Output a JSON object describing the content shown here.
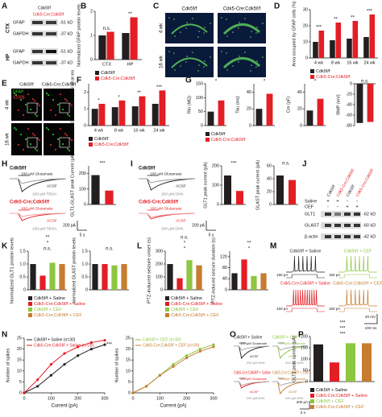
{
  "figure": {
    "panel_labels": [
      "A",
      "B",
      "C",
      "D",
      "E",
      "F",
      "G",
      "H",
      "I",
      "J",
      "K",
      "L",
      "M",
      "N",
      "O",
      "P"
    ],
    "a": {
      "headers": [
        "Cdk5f/f",
        "Cdk5-Cre;Cdk5f/f"
      ],
      "regions": [
        "CTX",
        "HP"
      ],
      "bands": [
        "GFAP",
        "GAPDH",
        "GFAP",
        "GAPDH"
      ],
      "sizes": [
        "-51 kD",
        "-37 kD",
        "-51 kD",
        "-37 kD"
      ]
    },
    "c": {
      "headers": [
        "Cdk5f/f",
        "Cdk5-Cre;Cdk5f/f"
      ],
      "rows": [
        "4 wk",
        "16 wk"
      ]
    },
    "e": {
      "headers": [
        "Cdk5f/f",
        "Cdk5-Cre;Cdk5f/f"
      ],
      "rows": [
        "4 wk",
        "16 wk"
      ],
      "stains": [
        "GFAP",
        "S100β"
      ]
    },
    "h": {
      "genotypes": [
        "Cdk5f/f",
        "Cdk5-Cre;Cdk5f/f"
      ],
      "labels": [
        "100 µM Glutamate",
        "ACSF",
        "100 µM TBOA",
        "100 µM Glutamate",
        "ACSF",
        "100 µM TBOA"
      ],
      "scale": [
        "200 pA",
        "5 s"
      ]
    },
    "i": {
      "genotypes": [
        "Cdk5f/f",
        "Cdk5-Cre;Cdk5f/f"
      ],
      "labels": [
        "100 µM Glutamate",
        "ACSF",
        "200 µM DHK",
        "100 µM Glutamate",
        "ACSF",
        "200 µM DHK"
      ],
      "scale": [
        "200 pA",
        "5 s"
      ]
    },
    "j": {
      "headers": [
        "Cdk5f/f",
        "Cdk5-Cre;Cdk5f/f",
        "Cdk5f/f",
        "Cdk5-Cre;Cdk5f/f"
      ],
      "rows": [
        "Saline",
        "CEF"
      ],
      "signs": [
        [
          "+",
          "+",
          "-",
          "-"
        ],
        [
          "-",
          "-",
          "+",
          "+"
        ]
      ],
      "bands": [
        "GLT1",
        "GLAST",
        "β-actin"
      ],
      "sizes": [
        "-62 kD",
        "-60 kD",
        "-42 kD"
      ]
    },
    "m": {
      "titles": [
        "Cdk5f/f + Saline",
        "Cdk5f/f + CEF",
        "Cdk5-Cre;Cdk5f/f + Saline",
        "Cdk5-Cre;Cdk5f/f + CEF"
      ],
      "currents": [
        "150 pA",
        "150 pA",
        "150 pA",
        "150 pA"
      ],
      "scale": [
        "20 mV",
        "100 ms"
      ]
    },
    "o": {
      "titles": [
        "Cdk5f/f + Saline",
        "Cdk5f/f + CEF",
        "Cdk5-Cre;Cdk5f/f + Saline",
        "Cdk5-Cre;Cdk5f/f + CEF"
      ],
      "labels": [
        "100 µM Glutamate",
        "ACSF",
        "200 µM DHK",
        "100 µM Glutamate",
        "ACSF",
        "200 µM DHK",
        "100 µM Glutamate",
        "ACSF",
        "200 µM DHK",
        "100 µM Glutamate",
        "ACSF",
        "200 µM DHK"
      ],
      "scale": [
        "200 pA",
        "5 s"
      ]
    }
  },
  "chart_data": [
    {
      "type": "bar",
      "ylabel": "Normalized GFAP protein levels",
      "categories": [
        "CTX",
        "HP"
      ],
      "series": [
        {
          "name": "Cdk5f/f",
          "color": "#231f20",
          "values": [
            1.0,
            1.1
          ]
        },
        {
          "name": "Cdk5-Cre;Cdk5f/f",
          "color": "#e31e24",
          "values": [
            1.15,
            1.75
          ]
        }
      ],
      "ylim": [
        0,
        2
      ],
      "yticks": [
        0,
        1,
        2
      ],
      "annotations": [
        "n.s.",
        "**"
      ],
      "legend": true
    },
    {
      "type": "bar",
      "ylabel": "Area occupied by GFAP cells (%)",
      "categories": [
        "4 wk",
        "8 wk",
        "16 wk",
        "24 wk"
      ],
      "series": [
        {
          "name": "Cdk5f/f",
          "color": "#231f20",
          "values": [
            10,
            11,
            12,
            13
          ]
        },
        {
          "name": "Cdk5-Cre;Cdk5f/f",
          "color": "#e31e24",
          "values": [
            17,
            22,
            23,
            27
          ]
        }
      ],
      "ylim": [
        0,
        30
      ],
      "yticks": [
        0,
        10,
        20,
        30
      ],
      "annotations": [
        "***",
        "**",
        "**",
        "***"
      ],
      "legend": true
    },
    {
      "type": "bar",
      "ylabel": "Density of S100β and GFAP double-positive cells per area",
      "categories": [
        "4 wk",
        "8 wk",
        "16 wk",
        "24 wk"
      ],
      "series": [
        {
          "name": "Cdk5f/f",
          "color": "#231f20",
          "values": [
            1.0,
            1.1,
            1.15,
            1.3
          ]
        },
        {
          "name": "Cdk5-Cre;Cdk5f/f",
          "color": "#e31e24",
          "values": [
            1.3,
            1.5,
            1.75,
            2.1
          ]
        }
      ],
      "ylim": [
        0,
        2.5
      ],
      "yticks": [
        0,
        1,
        2
      ],
      "annotations": [
        "*",
        "*",
        "**",
        "***"
      ],
      "legend": true
    },
    {
      "type": "bar",
      "ylabel": "Rin (MΩ)",
      "series": [
        {
          "name": "Cdk5f/f",
          "color": "#231f20",
          "values": [
            50
          ]
        },
        {
          "name": "Cdk5-Cre;Cdk5f/f",
          "color": "#e31e24",
          "values": [
            90
          ]
        }
      ],
      "ylim": [
        0,
        150
      ],
      "yticks": [
        0,
        50,
        100,
        150
      ],
      "annotations": [
        "*"
      ],
      "legend": true
    },
    {
      "type": "bar",
      "ylabel": "Tau (ms)",
      "series": [
        {
          "color": "#231f20",
          "values": [
            20
          ]
        },
        {
          "color": "#e31e24",
          "values": [
            38
          ]
        }
      ],
      "ylim": [
        0,
        50
      ],
      "yticks": [
        0,
        20,
        40
      ],
      "annotations": [
        "*"
      ]
    },
    {
      "type": "bar",
      "ylabel": "Cm (pF)",
      "series": [
        {
          "color": "#231f20",
          "values": [
            18
          ]
        },
        {
          "color": "#e31e24",
          "values": [
            32
          ]
        }
      ],
      "ylim": [
        0,
        50
      ],
      "yticks": [
        0,
        20,
        40
      ],
      "annotations": [
        "*"
      ]
    },
    {
      "type": "bar",
      "ylabel": "RMP (mV)",
      "series": [
        {
          "color": "#231f20",
          "values": [
            -75
          ]
        },
        {
          "color": "#e31e24",
          "values": [
            -73
          ]
        }
      ],
      "ylim": [
        -80,
        0
      ],
      "yticks": [
        0,
        -20,
        -40,
        -60,
        -80
      ],
      "annotations": [
        "n.s."
      ]
    },
    {
      "type": "bar",
      "ylabel": "GLT1-GLAST peak Current (pA)",
      "series": [
        {
          "color": "#231f20",
          "values": [
            190
          ]
        },
        {
          "color": "#e31e24",
          "values": [
            90
          ]
        }
      ],
      "ylim": [
        0,
        250
      ],
      "yticks": [
        0,
        100,
        200
      ],
      "annotations": [
        "***"
      ]
    },
    {
      "type": "bar",
      "ylabel": "GLT1 peak current (pA)",
      "series": [
        {
          "color": "#231f20",
          "values": [
            150
          ]
        },
        {
          "color": "#e31e24",
          "values": [
            70
          ]
        }
      ],
      "ylim": [
        0,
        200
      ],
      "yticks": [
        0,
        100,
        200
      ],
      "annotations": [
        "***"
      ]
    },
    {
      "type": "bar",
      "ylabel": "GLAST peak current (pA)",
      "series": [
        {
          "color": "#231f20",
          "values": [
            45
          ]
        },
        {
          "color": "#e31e24",
          "values": [
            38
          ]
        }
      ],
      "ylim": [
        0,
        60
      ],
      "yticks": [
        0,
        20,
        40,
        60
      ],
      "annotations": [
        "n.s."
      ]
    },
    {
      "type": "bar",
      "ylabel": "Normalized GLT1 protein levels",
      "series": [
        {
          "name": "Cdk5f/f + Saline",
          "color": "#231f20",
          "values": [
            1.0
          ]
        },
        {
          "name": "Cdk5-Cre;Cdk5f/f + Saline",
          "color": "#e31e24",
          "values": [
            0.55
          ]
        },
        {
          "name": "Cdk5f/f + CEF",
          "color": "#8dc63f",
          "values": [
            1.05
          ]
        },
        {
          "name": "Cdk5-Cre;Cdk5f/f + CEF",
          "color": "#c77c2e",
          "values": [
            1.0
          ]
        }
      ],
      "ylim": [
        0,
        1.5
      ],
      "yticks": [
        0,
        0.5,
        {
          "value": 1,
          "label": "1.0"
        },
        1.5
      ],
      "annotations": [
        "n.s.",
        "*",
        "**"
      ],
      "legend": true
    },
    {
      "type": "bar",
      "ylabel": "Normalized GLAST protein levels",
      "series": [
        {
          "color": "#231f20",
          "values": [
            1.0
          ]
        },
        {
          "color": "#e31e24",
          "values": [
            1.0
          ]
        },
        {
          "color": "#8dc63f",
          "values": [
            0.95
          ]
        },
        {
          "color": "#c77c2e",
          "values": [
            1.0
          ]
        }
      ],
      "ylim": [
        0,
        1.5
      ],
      "yticks": [
        0,
        0.5,
        {
          "value": 1,
          "label": "1.0"
        },
        1.5
      ],
      "annotations": [
        "n.s."
      ]
    },
    {
      "type": "bar",
      "ylabel": "PTZ-induced seizure onset (s)",
      "series": [
        {
          "name": "Cdk5f/f + Saline",
          "color": "#231f20",
          "values": [
            200
          ]
        },
        {
          "name": "Cdk5-Cre;Cdk5f/f + Saline",
          "color": "#e31e24",
          "values": [
            90
          ]
        },
        {
          "name": "Cdk5f/f + CEF",
          "color": "#8dc63f",
          "values": [
            230
          ]
        },
        {
          "name": "Cdk5-Cre;Cdk5f/f + CEF",
          "color": "#c77c2e",
          "values": [
            190
          ]
        }
      ],
      "ylim": [
        0,
        300
      ],
      "yticks": [
        0,
        100,
        200,
        300
      ],
      "annotations": [
        "*",
        "*",
        "n.s."
      ],
      "legend": true
    },
    {
      "type": "bar",
      "ylabel": "PTZ-induced seizure duration (s)",
      "series": [
        {
          "color": "#231f20",
          "values": [
            60
          ]
        },
        {
          "color": "#e31e24",
          "values": [
            110
          ]
        },
        {
          "color": "#8dc63f",
          "values": [
            50
          ]
        },
        {
          "color": "#c77c2e",
          "values": [
            60
          ]
        }
      ],
      "ylim": [
        0,
        140
      ],
      "yticks": [
        0,
        40,
        80,
        120
      ],
      "annotations": [
        "*",
        "**"
      ]
    },
    {
      "type": "line",
      "xlabel": "Current (pA)",
      "ylabel": "Number of spikes",
      "x": [
        0,
        50,
        100,
        150,
        200,
        250,
        300
      ],
      "series": [
        {
          "name": "Cdk5f/f + Saline (n=30)",
          "color": "#231f20",
          "values": [
            0,
            3,
            8,
            13,
            17,
            20,
            22
          ]
        },
        {
          "name": "Cdk5-Cre;Cdk5f/f + Saline (n=28)",
          "color": "#e31e24",
          "values": [
            0,
            6,
            13,
            18,
            21,
            23,
            24
          ]
        }
      ],
      "xlim": [
        0,
        300
      ],
      "xticks": [
        0,
        100,
        200,
        300
      ],
      "ylim": [
        0,
        25
      ],
      "yticks": [
        0,
        5,
        10,
        15,
        20,
        25
      ],
      "annotations": [
        "***"
      ]
    },
    {
      "type": "line",
      "xlabel": "Current (pA)",
      "ylabel": "Number of spikes",
      "x": [
        0,
        50,
        100,
        150,
        200,
        250,
        300
      ],
      "series": [
        {
          "name": "Cdk5f/f + CEF (n=30)",
          "color": "#8dc63f",
          "values": [
            0,
            3,
            8,
            13,
            17,
            20,
            22
          ]
        },
        {
          "name": "Cdk5-Cre;Cdk5f/f + CEF (n=26)",
          "color": "#c77c2e",
          "values": [
            0,
            3,
            8,
            12,
            16,
            19,
            21
          ]
        }
      ],
      "xlim": [
        0,
        300
      ],
      "xticks": [
        0,
        100,
        200,
        300
      ],
      "ylim": [
        0,
        25
      ],
      "yticks": [
        0,
        5,
        10,
        15,
        20,
        25
      ]
    },
    {
      "type": "bar",
      "ylabel": "GLT1 peak current (pA)",
      "series": [
        {
          "name": "Cdk5f/f + Saline",
          "color": "#231f20",
          "values": [
            165
          ]
        },
        {
          "name": "Cdk5-Cre;Cdk5f/f + Saline",
          "color": "#e31e24",
          "values": [
            85
          ]
        },
        {
          "name": "Cdk5f/f + CEF",
          "color": "#8dc63f",
          "values": [
            170
          ]
        },
        {
          "name": "Cdk5-Cre;Cdk5f/f + CEF",
          "color": "#c77c2e",
          "values": [
            170
          ]
        }
      ],
      "ylim": [
        0,
        200
      ],
      "yticks": [
        0,
        50,
        100,
        150,
        200
      ],
      "annotations": [
        "***",
        "***",
        "***"
      ],
      "legend": true
    }
  ]
}
